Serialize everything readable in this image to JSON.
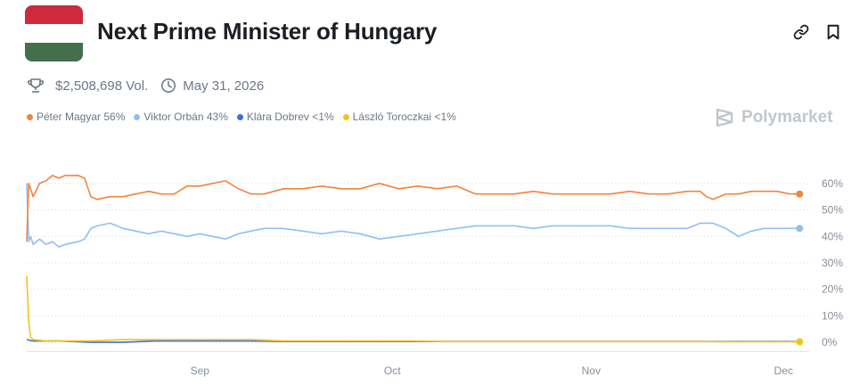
{
  "header": {
    "title": "Next Prime Minister of Hungary",
    "flag_colors": [
      "#CD2A3E",
      "#FFFFFF",
      "#436F4D"
    ]
  },
  "meta": {
    "volume": "$2,508,698 Vol.",
    "end_date": "May 31, 2026"
  },
  "brand": {
    "name": "Polymarket"
  },
  "legend": [
    {
      "label": "Péter Magyar 56%",
      "color": "#F2843D"
    },
    {
      "label": "Viktor Orbán 43%",
      "color": "#8FC0F3"
    },
    {
      "label": "Klára Dobrev <1%",
      "color": "#3A6FE0"
    },
    {
      "label": "László Toroczkai <1%",
      "color": "#F3C31C"
    }
  ],
  "chart_data": {
    "type": "line",
    "title": "Next Prime Minister of Hungary",
    "xlabel": "",
    "ylabel": "",
    "x_unit": "days since Aug 5",
    "x_ticks": [
      {
        "label": "Sep",
        "x": 27
      },
      {
        "label": "Oct",
        "x": 57
      },
      {
        "label": "Nov",
        "x": 88
      },
      {
        "label": "Dec",
        "x": 118
      }
    ],
    "xlim": [
      0,
      122
    ],
    "ylim": [
      -4,
      66
    ],
    "y_ticks": [
      0,
      10,
      20,
      30,
      40,
      50,
      60
    ],
    "y_tick_labels": [
      "0%",
      "10%",
      "20%",
      "30%",
      "40%",
      "50%",
      "60%"
    ],
    "grid": true,
    "series": [
      {
        "name": "Péter Magyar",
        "color": "#F2843D",
        "x": [
          0,
          0.3,
          0.6,
          1,
          2,
          3,
          4,
          5,
          6,
          8,
          9,
          10,
          11,
          13,
          15,
          17,
          19,
          21,
          23,
          25,
          27,
          29,
          31,
          33,
          35,
          37,
          40,
          43,
          46,
          49,
          52,
          55,
          58,
          61,
          64,
          67,
          70,
          73,
          76,
          79,
          82,
          85,
          88,
          91,
          94,
          97,
          100,
          103,
          105,
          106,
          107,
          109,
          111,
          113,
          115,
          117,
          119,
          120.5
        ],
        "values": [
          38,
          60,
          58,
          55,
          60,
          61,
          63,
          62,
          63,
          63,
          62,
          55,
          54,
          55,
          55,
          56,
          57,
          56,
          56,
          59,
          59,
          60,
          61,
          58,
          56,
          56,
          58,
          58,
          59,
          58,
          58,
          60,
          58,
          59,
          58,
          59,
          56,
          56,
          56,
          57,
          56,
          56,
          56,
          56,
          57,
          56,
          56,
          57,
          57,
          55,
          54,
          56,
          56,
          57,
          57,
          57,
          56,
          56
        ]
      },
      {
        "name": "Viktor Orbán",
        "color": "#8FC0F3",
        "x": [
          0,
          0.3,
          0.6,
          1,
          2,
          3,
          4,
          5,
          6,
          8,
          9,
          10,
          11,
          13,
          15,
          17,
          19,
          21,
          23,
          25,
          27,
          29,
          31,
          33,
          35,
          37,
          40,
          43,
          46,
          49,
          52,
          55,
          58,
          61,
          64,
          67,
          70,
          73,
          76,
          79,
          82,
          85,
          88,
          91,
          94,
          97,
          100,
          103,
          105,
          106,
          107,
          109,
          111,
          113,
          115,
          117,
          119,
          120.5
        ],
        "values": [
          60,
          38,
          40,
          37,
          39,
          37,
          38,
          36,
          37,
          38,
          39,
          43,
          44,
          45,
          43,
          42,
          41,
          42,
          41,
          40,
          41,
          40,
          39,
          41,
          42,
          43,
          43,
          42,
          41,
          42,
          41,
          39,
          40,
          41,
          42,
          43,
          44,
          44,
          44,
          43,
          44,
          44,
          44,
          44,
          43,
          43,
          43,
          43,
          45,
          45,
          45,
          43,
          40,
          42,
          43,
          43,
          43,
          43
        ]
      },
      {
        "name": "Klára Dobrev",
        "color": "#3A6FE0",
        "x": [
          0,
          1,
          5,
          10,
          15,
          20,
          25,
          30,
          35,
          40,
          45,
          50,
          55,
          60,
          65,
          70,
          75,
          80,
          85,
          90,
          95,
          100,
          105,
          110,
          115,
          120.5
        ],
        "values": [
          1,
          0.5,
          0.5,
          0,
          0,
          0.5,
          0.5,
          0.5,
          0.5,
          0.3,
          0.3,
          0.3,
          0.3,
          0.3,
          0.3,
          0.3,
          0.3,
          0.3,
          0.3,
          0.3,
          0.3,
          0.3,
          0.3,
          0.3,
          0.3,
          0.3
        ]
      },
      {
        "name": "László Toroczkai",
        "color": "#F3C31C",
        "x": [
          0,
          0.3,
          0.6,
          1,
          3,
          6,
          10,
          15,
          20,
          25,
          30,
          35,
          40,
          45,
          50,
          55,
          60,
          65,
          70,
          75,
          80,
          85,
          90,
          95,
          100,
          105,
          110,
          115,
          120.5
        ],
        "values": [
          25,
          8,
          2,
          1,
          0.5,
          0.5,
          0.5,
          1,
          1,
          1,
          1,
          1,
          0.5,
          0.5,
          0.5,
          0.5,
          0.5,
          0.3,
          0.3,
          0.3,
          0.3,
          0.3,
          0.3,
          0.3,
          0.3,
          0.3,
          0.2,
          0.2,
          0.2
        ]
      }
    ]
  }
}
